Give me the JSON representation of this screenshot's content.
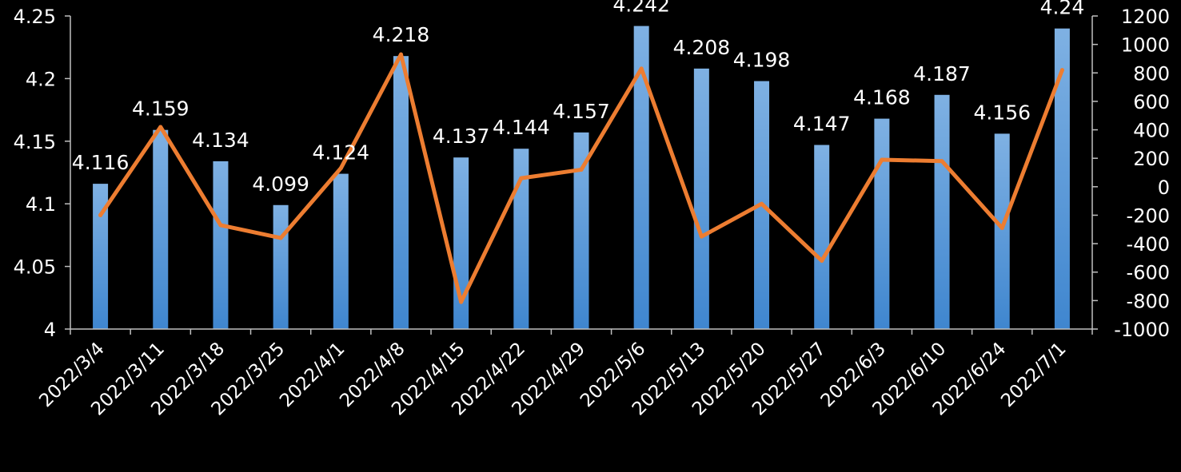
{
  "chart_data": {
    "type": "bar",
    "title": "",
    "categories": [
      "2022/3/4",
      "2022/3/11",
      "2022/3/18",
      "2022/3/25",
      "2022/4/1",
      "2022/4/8",
      "2022/4/15",
      "2022/4/22",
      "2022/4/29",
      "2022/5/6",
      "2022/5/13",
      "2022/5/20",
      "2022/5/27",
      "2022/6/3",
      "2022/6/10",
      "2022/6/24",
      "2022/7/1"
    ],
    "series": [
      {
        "chart_type": "bar",
        "axis": "left",
        "color": "#5b9bd5",
        "values": [
          4.116,
          4.159,
          4.134,
          4.099,
          4.124,
          4.218,
          4.137,
          4.144,
          4.157,
          4.242,
          4.208,
          4.198,
          4.147,
          4.168,
          4.187,
          4.156,
          4.24
        ],
        "labels": [
          "4.116",
          "4.159",
          "4.134",
          "4.099",
          "4.124",
          "4.218",
          "4.137",
          "4.144",
          "4.157",
          "4.242",
          "4.208",
          "4.198",
          "4.147",
          "4.168",
          "4.187",
          "4.156",
          "4.24"
        ]
      },
      {
        "chart_type": "line",
        "axis": "right",
        "color": "#ed7d31",
        "values": [
          -200,
          420,
          -270,
          -360,
          130,
          930,
          -810,
          60,
          120,
          830,
          -350,
          -120,
          -520,
          190,
          180,
          -290,
          820
        ]
      }
    ],
    "y_left": {
      "min": 4,
      "max": 4.25,
      "ticks": [
        "4",
        "4.05",
        "4.1",
        "4.15",
        "4.2",
        "4.25"
      ]
    },
    "y_right": {
      "min": -1000,
      "max": 1200,
      "ticks": [
        "-1000",
        "-800",
        "-600",
        "-400",
        "-200",
        "0",
        "200",
        "400",
        "600",
        "800",
        "1000",
        "1200"
      ]
    },
    "grid": false,
    "legend": "none"
  }
}
